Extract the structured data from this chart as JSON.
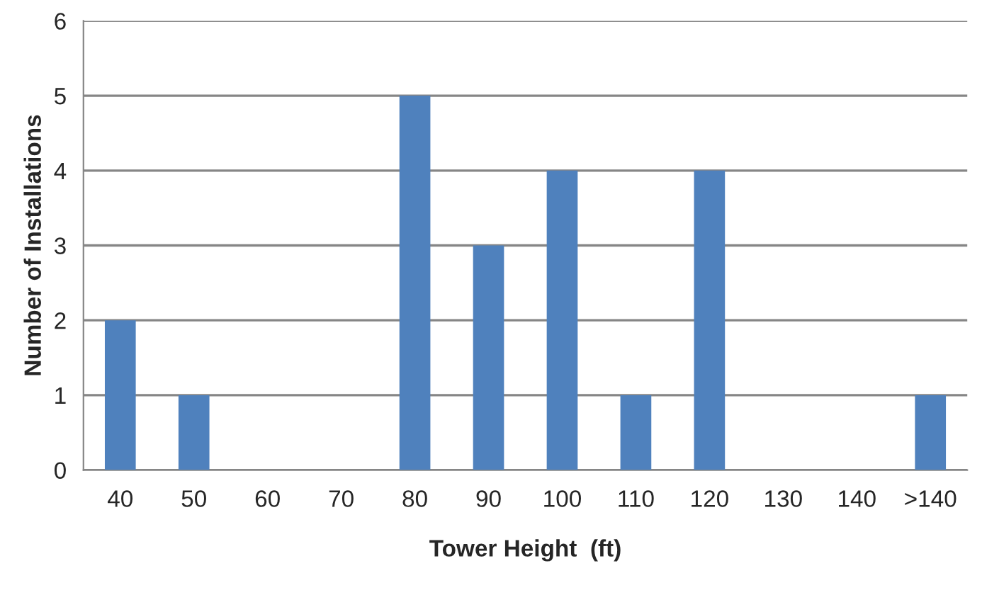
{
  "chart_data": {
    "type": "bar",
    "xlabel": "Tower Height  (ft)",
    "ylabel": "Number of Installations",
    "categories": [
      "40",
      "50",
      "60",
      "70",
      "80",
      "90",
      "100",
      "110",
      "120",
      "130",
      "140",
      ">140"
    ],
    "values": [
      2,
      1,
      0,
      0,
      5,
      3,
      4,
      1,
      4,
      0,
      0,
      1
    ],
    "color": "#4f81bd",
    "ylim": [
      0,
      6
    ],
    "yticks": [
      0,
      1,
      2,
      3,
      4,
      5,
      6
    ],
    "grid": "y",
    "legend": false
  }
}
